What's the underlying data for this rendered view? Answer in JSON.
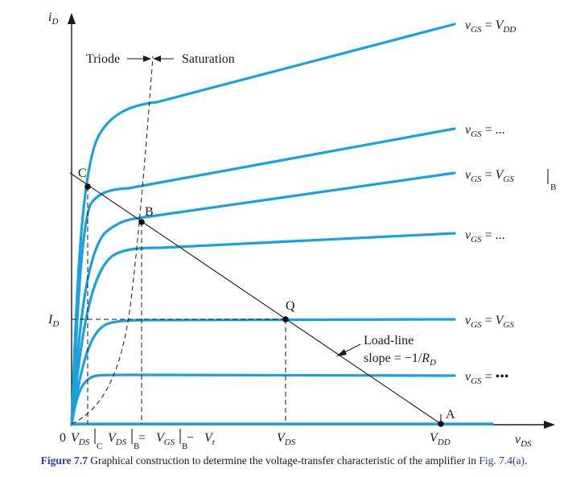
{
  "axes": {
    "y_label": "i",
    "y_label_sub": "D",
    "x_label": "v",
    "x_label_sub": "DS",
    "origin": "0"
  },
  "regions": {
    "triode": "Triode",
    "saturation": "Saturation"
  },
  "points": {
    "A": "A",
    "B": "B",
    "C": "C",
    "Q": "Q"
  },
  "curve_labels": [
    {
      "v": "v",
      "gs": "GS",
      "eq": " = ",
      "rhs": "V",
      "rhs_sub": "DD"
    },
    {
      "v": "v",
      "gs": "GS",
      "eq": " = ",
      "rhs": "...",
      "rhs_sub": ""
    },
    {
      "v": "v",
      "gs": "GS",
      "eq": " = ",
      "rhs": "V",
      "rhs_sub": "GS",
      "bar_sub": "B"
    },
    {
      "v": "v",
      "gs": "GS",
      "eq": " = ",
      "rhs": "...",
      "rhs_sub": ""
    },
    {
      "v": "v",
      "gs": "GS",
      "eq": " = ",
      "rhs": "V",
      "rhs_sub": "GS"
    },
    {
      "v": "v",
      "gs": "GS",
      "eq": " = ",
      "rhs": "•••",
      "rhs_sub": ""
    }
  ],
  "y_ticks": {
    "id": "I",
    "id_sub": "D"
  },
  "x_ticks": {
    "vds_c": "V",
    "vds_c_sub": "DS",
    "vds_c_bar": "C",
    "vds_b": "V",
    "vds_b_sub": "DS",
    "vds_b_bar": "B",
    "eq": " = ",
    "vgs_b": "V",
    "vgs_b_sub": "GS",
    "vgs_b_bar": "B",
    "minus": " − ",
    "vt": "V",
    "vt_sub": "t",
    "vds": "V",
    "vds_sub": "DS",
    "vdd": "V",
    "vdd_sub": "DD"
  },
  "load_line": {
    "line1": "Load-line",
    "line2_prefix": "slope = −1/",
    "line2_r": "R",
    "line2_sub": "D"
  },
  "caption": {
    "label": "Figure 7.7",
    "text": " Graphical construction to determine the voltage-transfer characteristic of the amplifier in ",
    "link": "Fig. 7.4(a)",
    "end": "."
  },
  "colors": {
    "curve": "#1ba1dc",
    "caption_blue": "#2a3eaa"
  }
}
